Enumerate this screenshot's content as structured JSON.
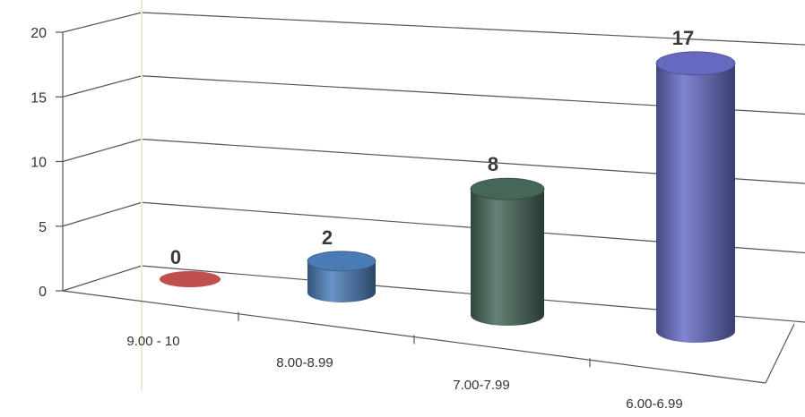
{
  "chart_data": {
    "type": "bar",
    "style": "3d-cylinder",
    "title": "",
    "xlabel": "",
    "ylabel": "",
    "categories": [
      "9.00 - 10",
      "8.00-8.99",
      "7.00-7.99",
      "6.00-6.99"
    ],
    "values": [
      0,
      2,
      8,
      17
    ],
    "data_labels": [
      "0",
      "2",
      "8",
      "17"
    ],
    "ylim": [
      0,
      20
    ],
    "yticks": [
      "0",
      "5",
      "10",
      "15",
      "20"
    ],
    "grid": true,
    "legend": "none",
    "colors": [
      "#c0504d",
      "#4f81bd",
      "#4a6b5c",
      "#6a6fc9"
    ]
  }
}
